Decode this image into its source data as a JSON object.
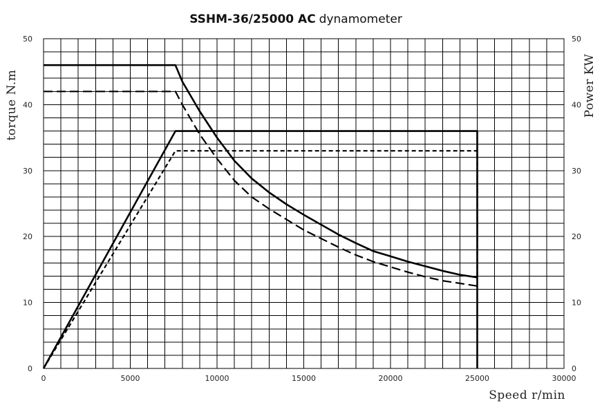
{
  "chart_data": {
    "type": "line",
    "title_bold": "SSHM-36/25000 AC",
    "title_normal": "dynamometer",
    "xlabel": "Speed r/min",
    "ylabel_left": "torque N.m",
    "ylabel_right": "Power KW",
    "xlim": [
      0,
      30000
    ],
    "ylim": [
      0,
      50
    ],
    "xticks": [
      "0",
      "5000",
      "10000",
      "15000",
      "20000",
      "25000",
      "30000"
    ],
    "yticks_left": [
      "0",
      "10",
      "20",
      "30",
      "40",
      "50"
    ],
    "yticks_right": [
      "0",
      "10",
      "20",
      "30",
      "40",
      "50"
    ],
    "grid": true,
    "series": [
      {
        "style": "solid",
        "points": [
          [
            0,
            46
          ],
          [
            7600,
            46
          ],
          [
            8000,
            43.5
          ],
          [
            9000,
            39
          ],
          [
            10000,
            35
          ],
          [
            11000,
            31.5
          ],
          [
            12000,
            28.8
          ],
          [
            13000,
            26.7
          ],
          [
            14000,
            24.9
          ],
          [
            15000,
            23.3
          ],
          [
            16000,
            21.8
          ],
          [
            17000,
            20.3
          ],
          [
            18000,
            19
          ],
          [
            19000,
            17.8
          ],
          [
            20000,
            17
          ],
          [
            21000,
            16.2
          ],
          [
            22000,
            15.5
          ],
          [
            23000,
            14.8
          ],
          [
            24000,
            14.2
          ],
          [
            25000,
            13.8
          ]
        ]
      },
      {
        "style": "dashed",
        "points": [
          [
            0,
            42
          ],
          [
            7600,
            42
          ],
          [
            8000,
            40
          ],
          [
            9000,
            35.5
          ],
          [
            10000,
            31.8
          ],
          [
            11000,
            28.5
          ],
          [
            12000,
            26
          ],
          [
            13000,
            24.2
          ],
          [
            14000,
            22.6
          ],
          [
            15000,
            21
          ],
          [
            16000,
            19.7
          ],
          [
            17000,
            18.4
          ],
          [
            18000,
            17.2
          ],
          [
            19000,
            16.2
          ],
          [
            20000,
            15.4
          ],
          [
            21000,
            14.6
          ],
          [
            22000,
            13.9
          ],
          [
            23000,
            13.3
          ],
          [
            24000,
            12.9
          ],
          [
            25000,
            12.5
          ]
        ]
      },
      {
        "style": "solid",
        "points": [
          [
            0,
            0
          ],
          [
            7600,
            36
          ],
          [
            25000,
            36
          ],
          [
            25000,
            0
          ]
        ]
      },
      {
        "style": "dotted",
        "points": [
          [
            0,
            0
          ],
          [
            7600,
            33
          ],
          [
            25000,
            33
          ],
          [
            25000,
            13.8
          ]
        ]
      }
    ]
  }
}
